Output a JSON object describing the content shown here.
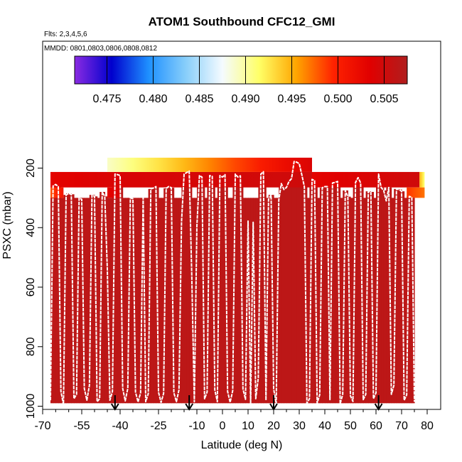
{
  "chart_data": {
    "type": "heatmap",
    "title": "ATOM1 Southbound CFC12_GMI",
    "flights_note": "Flts: 2,3,4,5,6",
    "dates_note": "MMDD: 0801,0803,0806,0808,0812",
    "xlabel": "Latitude (deg N)",
    "ylabel": "PSXC (mbar)",
    "xlim": [
      -70,
      80
    ],
    "ylim": [
      1000,
      100
    ],
    "x_ticks": [
      -70,
      -55,
      -40,
      -25,
      -10,
      0,
      10,
      20,
      30,
      40,
      50,
      60,
      70,
      80
    ],
    "x_tick_labels": [
      "-70",
      "-55",
      "-40",
      "-25",
      "-10",
      "0",
      "10",
      "20",
      "30",
      "40",
      "50",
      "60",
      "70",
      "80"
    ],
    "y_ticks": [
      200,
      400,
      600,
      800,
      1000
    ],
    "y_tick_labels": [
      "200",
      "400",
      "600",
      "800",
      "1000"
    ],
    "colorbar": {
      "range": [
        0.4715,
        0.5075
      ],
      "ticks": [
        0.475,
        0.48,
        0.485,
        0.49,
        0.495,
        0.5,
        0.505
      ],
      "tick_labels": [
        "0.475",
        "0.480",
        "0.485",
        "0.490",
        "0.495",
        "0.500",
        "0.505"
      ],
      "colors": [
        "#8a2be2",
        "#0000cd",
        "#1e90ff",
        "#87cefa",
        "#f5fbff",
        "#ffff66",
        "#ffa500",
        "#ff2200",
        "#e00000",
        "#b01e1e"
      ]
    },
    "background_value": 0.5065,
    "upper_bands": [
      {
        "x0": -67,
        "x1": -45,
        "p_top": 213,
        "p_bot": 265,
        "v0": 0.503,
        "v1": 0.504
      },
      {
        "x0": -45,
        "x1": 35,
        "p_top": 213,
        "p_bot": 265,
        "v0": 0.504,
        "v1": 0.505
      },
      {
        "x0": 35,
        "x1": 77,
        "p_top": 213,
        "p_bot": 265,
        "v0": 0.503,
        "v1": 0.505
      },
      {
        "x0": 77,
        "x1": 79,
        "p_top": 213,
        "p_bot": 265,
        "v0": 0.495,
        "v1": 0.491
      },
      {
        "x0": -45,
        "x1": 35,
        "p_top": 165,
        "p_bot": 213,
        "v0": 0.489,
        "v1": 0.504
      },
      {
        "x0": -67,
        "x1": -62,
        "p_top": 265,
        "p_bot": 300,
        "v0": 0.498,
        "v1": 0.501
      },
      {
        "x0": 72,
        "x1": 79,
        "p_top": 265,
        "p_bot": 300,
        "v0": 0.499,
        "v1": 0.497
      },
      {
        "x0": -45,
        "x1": -40,
        "p_top": 265,
        "p_bot": 300,
        "v0": 0.503,
        "v1": 0.504
      }
    ],
    "track_lat": [
      -67,
      -66,
      -65,
      -64,
      -63,
      -62,
      -61,
      -60,
      -59,
      -58,
      -57,
      -56,
      -55,
      -54,
      -53,
      -52,
      -51,
      -50,
      -49,
      -48,
      -47,
      -46,
      -45,
      -44,
      -43,
      -42,
      -41,
      -40,
      -39,
      -38,
      -37,
      -36,
      -35,
      -34,
      -33,
      -32,
      -31,
      -30,
      -29,
      -28,
      -27,
      -26,
      -25,
      -24,
      -23,
      -22,
      -21,
      -20,
      -19,
      -18,
      -17,
      -16,
      -15,
      -14,
      -13,
      -12,
      -11,
      -10,
      -9,
      -8,
      -7,
      -6,
      -5,
      -4,
      -3,
      -2,
      -1,
      0,
      1,
      2,
      3,
      4,
      5,
      6,
      7,
      8,
      9,
      10,
      11,
      12,
      13,
      14,
      15,
      16,
      17,
      18,
      19,
      20,
      21,
      22,
      23,
      24,
      25,
      26,
      27,
      28,
      29,
      30,
      31,
      32,
      33,
      34,
      35,
      36,
      37,
      38,
      39,
      40,
      41,
      42,
      43,
      44,
      45,
      46,
      47,
      48,
      49,
      50,
      51,
      52,
      53,
      54,
      55,
      56,
      57,
      58,
      59,
      60,
      61,
      62,
      63,
      64,
      65,
      66,
      67,
      68,
      69,
      70,
      71,
      72,
      73,
      74,
      75,
      76,
      77,
      78,
      79
    ],
    "track_psxc": [
      980,
      260,
      255,
      262,
      950,
      995,
      290,
      285,
      288,
      975,
      960,
      300,
      305,
      940,
      980,
      930,
      290,
      295,
      985,
      975,
      280,
      295,
      540,
      980,
      950,
      220,
      222,
      225,
      940,
      982,
      940,
      300,
      303,
      952,
      986,
      955,
      300,
      985,
      958,
      270,
      267,
      262,
      953,
      987,
      957,
      268,
      262,
      266,
      955,
      985,
      945,
      380,
      220,
      215,
      210,
      560,
      985,
      395,
      225,
      230,
      975,
      952,
      225,
      228,
      945,
      985,
      225,
      230,
      222,
      950,
      987,
      948,
      220,
      230,
      226,
      942,
      977,
      378,
      992,
      382,
      975,
      905,
      220,
      212,
      980,
      305,
      290,
      942,
      992,
      308,
      252,
      272,
      265,
      245,
      235,
      178,
      180,
      185,
      222,
      262,
      990,
      975,
      238,
      242,
      990,
      962,
      266,
      262,
      262,
      978,
      250,
      248,
      245,
      992,
      960,
      275,
      296,
      965,
      984,
      248,
      232,
      250,
      978,
      960,
      278,
      280,
      975,
      955,
      220,
      265,
      275,
      310,
      265,
      960,
      930,
      270,
      272,
      278,
      980,
      962,
      295,
      298,
      985
    ],
    "arrows_lat": [
      -42,
      -13,
      20,
      61
    ]
  }
}
